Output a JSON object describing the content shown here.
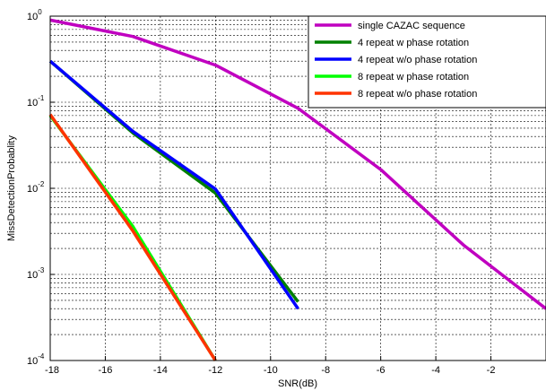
{
  "chart_data": {
    "type": "line",
    "title": "",
    "xlabel": "SNR(dB)",
    "ylabel": "MissDetectionProbablity",
    "xlim": [
      -18,
      0
    ],
    "ylim": [
      0.0001,
      1
    ],
    "yscale": "log",
    "grid": true,
    "legend_position": "top-right",
    "x_ticks": [
      -18,
      -16,
      -14,
      -12,
      -10,
      -8,
      -6,
      -4,
      -2
    ],
    "x_tick_labels": [
      "-18",
      "-16",
      "-14",
      "-12",
      "-10",
      "-8",
      "-6",
      "-4",
      "-2"
    ],
    "y_ticks": [
      {
        "value": 0.0001,
        "base": "10",
        "exp": "-4"
      },
      {
        "value": 0.001,
        "base": "10",
        "exp": "-3"
      },
      {
        "value": 0.01,
        "base": "10",
        "exp": "-2"
      },
      {
        "value": 0.1,
        "base": "10",
        "exp": "-1"
      },
      {
        "value": 1,
        "base": "10",
        "exp": "0"
      }
    ],
    "series": [
      {
        "name": "single CAZAC sequence",
        "color": "#c000c0",
        "x": [
          -18,
          -15,
          -12,
          -9,
          -6,
          -3,
          0
        ],
        "y": [
          0.9,
          0.58,
          0.27,
          0.085,
          0.0165,
          0.0022,
          0.0004
        ]
      },
      {
        "name": "4 repeat w  phase rotation",
        "color": "#008000",
        "x": [
          -18,
          -15,
          -12,
          -9
        ],
        "y": [
          0.3,
          0.044,
          0.0088,
          0.00048
        ]
      },
      {
        "name": "4 repeat w/o  phase rotation",
        "color": "#0000ff",
        "x": [
          -18,
          -15,
          -12,
          -9
        ],
        "y": [
          0.3,
          0.046,
          0.0098,
          0.0004
        ]
      },
      {
        "name": "8 repeat w  phase rotation",
        "color": "#00ff00",
        "x": [
          -18,
          -15,
          -12
        ],
        "y": [
          0.07,
          0.0036,
          0.0001
        ]
      },
      {
        "name": "8 repeat w/o   phase rotation",
        "color": "#ff3300",
        "x": [
          -18,
          -15,
          -12
        ],
        "y": [
          0.072,
          0.0032,
          0.0001
        ]
      }
    ]
  }
}
